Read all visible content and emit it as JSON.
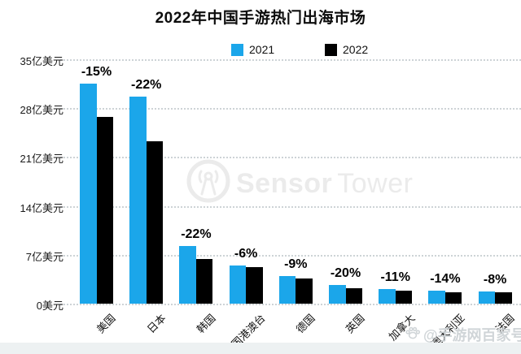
{
  "title": "2022年中国手游热门出海市场",
  "legend": {
    "items": [
      {
        "label": "2021",
        "color": "#1BA6EA"
      },
      {
        "label": "2022",
        "color": "#000000"
      }
    ]
  },
  "colors": {
    "bar_2021": "#1BA6EA",
    "bar_2022": "#000000",
    "gridline": "#cdd3d6",
    "watermark_gray": "#ebebeb"
  },
  "watermarks": {
    "center": {
      "icon": "sensortower-logo-icon",
      "text_bold": "Sensor",
      "text_light": "Tower"
    },
    "corner": {
      "icon": "paw-icon",
      "text": "@手游网百家号"
    }
  },
  "chart_data": {
    "type": "bar",
    "title": "2022年中国手游热门出海市场",
    "unit": "亿美元",
    "categories": [
      "美国",
      "日本",
      "韩国",
      "中国港澳台",
      "德国",
      "英国",
      "加拿大",
      "澳大利亚",
      "法国"
    ],
    "series": [
      {
        "name": "2021",
        "color": "#1BA6EA",
        "values": [
          31.5,
          29.7,
          8.2,
          5.5,
          4.0,
          2.7,
          2.1,
          1.9,
          1.7
        ]
      },
      {
        "name": "2022",
        "color": "#000000",
        "values": [
          26.8,
          23.2,
          6.4,
          5.2,
          3.6,
          2.2,
          1.9,
          1.6,
          1.6
        ]
      }
    ],
    "change_labels": [
      "-15%",
      "-22%",
      "-22%",
      "-6%",
      "-9%",
      "-20%",
      "-11%",
      "-14%",
      "-8%"
    ],
    "y_ticks": [
      {
        "value": 35,
        "label": "35亿美元"
      },
      {
        "value": 28,
        "label": "28亿美元"
      },
      {
        "value": 21,
        "label": "21亿美元"
      },
      {
        "value": 14,
        "label": "14亿美元"
      },
      {
        "value": 7,
        "label": "7亿美元"
      },
      {
        "value": 0,
        "label": "0美元"
      }
    ],
    "ylim": [
      0,
      35
    ],
    "grid": "dotted-horizontal",
    "legend_position": "top-center",
    "category_label_rotation_deg": -45
  }
}
